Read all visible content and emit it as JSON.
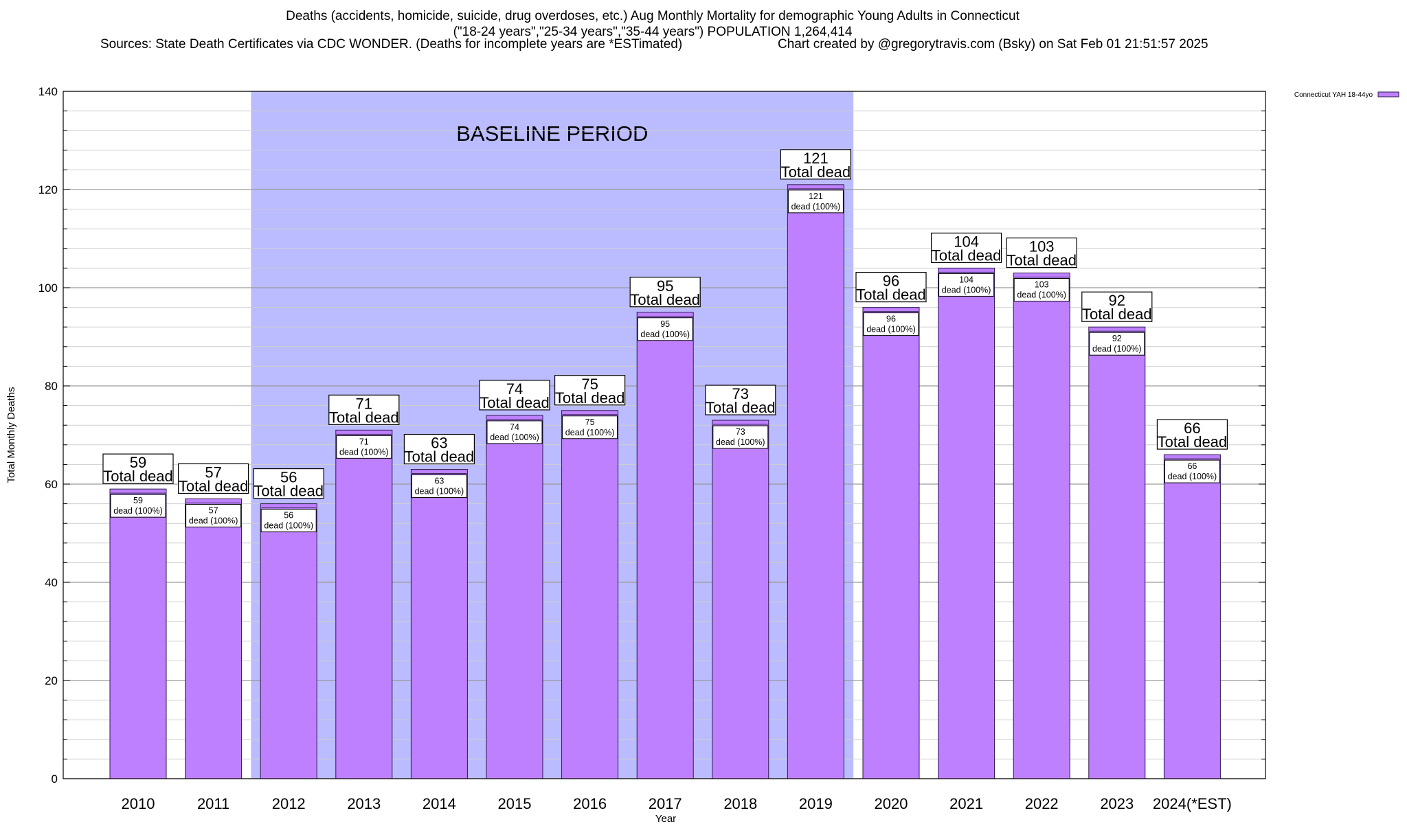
{
  "header": {
    "title_line1": "Deaths (accidents, homicide, suicide, drug overdoses, etc.) Aug Monthly Mortality for demographic Young Adults in Connecticut",
    "title_line2": "(\"18-24 years\",\"25-34 years\",\"35-44 years\") POPULATION 1,264,414",
    "sources": "Sources: State Death Certificates via CDC WONDER. (Deaths for incomplete years are *ESTimated)",
    "credit": "Chart created by @gregorytravis.com (Bsky) on Sat Feb 01 21:51:57 2025"
  },
  "chart_data": {
    "type": "bar",
    "categories": [
      "2010",
      "2011",
      "2012",
      "2013",
      "2014",
      "2015",
      "2016",
      "2017",
      "2018",
      "2019",
      "2020",
      "2021",
      "2022",
      "2023",
      "2024(*EST)"
    ],
    "series": [
      {
        "name": "Connecticut YAH 18-44yo",
        "values": [
          59,
          57,
          56,
          71,
          63,
          74,
          75,
          95,
          73,
          121,
          96,
          104,
          103,
          92,
          66
        ],
        "color": "#bf80ff"
      }
    ],
    "xlabel": "Year",
    "ylabel": "Total Monthly Deaths",
    "ylim": [
      0,
      140
    ],
    "y_ticks": [
      0,
      20,
      40,
      60,
      80,
      100,
      120,
      140
    ],
    "grid": true,
    "legend_position": "top-right",
    "top_label_suffix": "Total dead",
    "inner_label_suffix": "dead (100%)",
    "baseline": {
      "label": "BASELINE PERIOD",
      "start": "2012",
      "end": "2019",
      "color": "#bbbbff"
    }
  }
}
